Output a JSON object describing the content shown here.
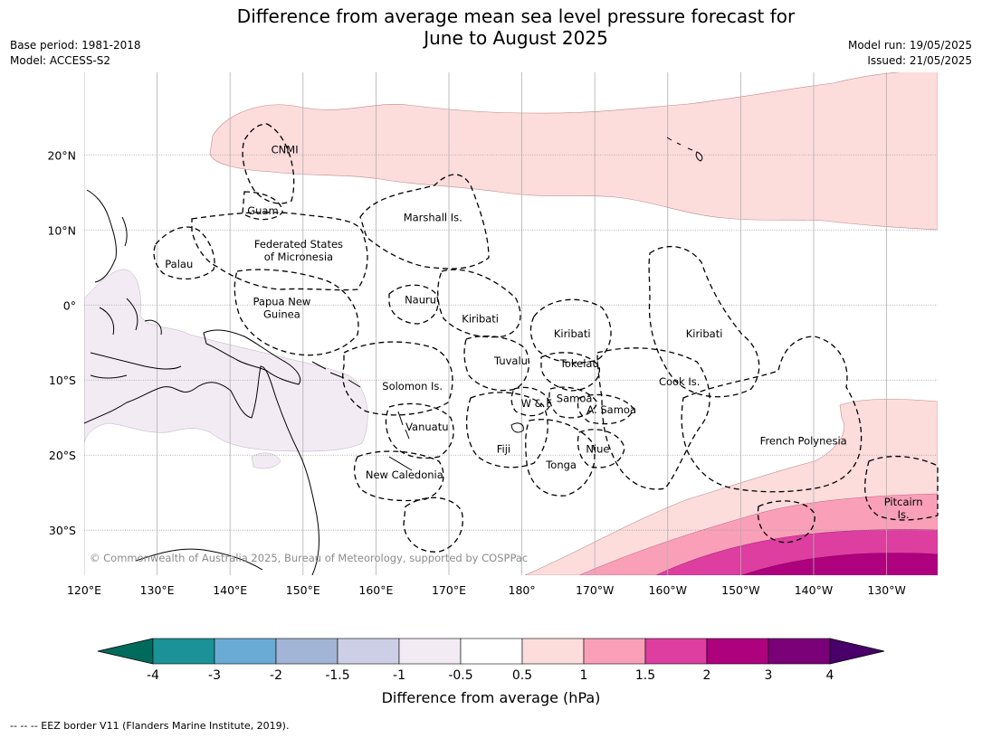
{
  "title_line1": "Difference from average mean sea level pressure forecast for",
  "title_line2": "June to August 2025",
  "meta_left": {
    "base_period": "Base period: 1981-2018",
    "model": "Model: ACCESS-S2"
  },
  "meta_right": {
    "model_run": "Model run: 19/05/2025",
    "issued": "Issued: 21/05/2025"
  },
  "map": {
    "lon_range": [
      120,
      237
    ],
    "lat_range": [
      -36,
      31
    ],
    "lon_ticks": [
      {
        "v": 120,
        "label": "120°E"
      },
      {
        "v": 130,
        "label": "130°E"
      },
      {
        "v": 140,
        "label": "140°E"
      },
      {
        "v": 150,
        "label": "150°E"
      },
      {
        "v": 160,
        "label": "160°E"
      },
      {
        "v": 170,
        "label": "170°E"
      },
      {
        "v": 180,
        "label": "180°"
      },
      {
        "v": 190,
        "label": "170°W"
      },
      {
        "v": 200,
        "label": "160°W"
      },
      {
        "v": 210,
        "label": "150°W"
      },
      {
        "v": 220,
        "label": "140°W"
      },
      {
        "v": 230,
        "label": "130°W"
      }
    ],
    "lat_ticks": [
      {
        "v": 20,
        "label": "20°N"
      },
      {
        "v": 10,
        "label": "10°N"
      },
      {
        "v": 0,
        "label": "0°"
      },
      {
        "v": -10,
        "label": "10°S"
      },
      {
        "v": -20,
        "label": "20°S"
      },
      {
        "v": -30,
        "label": "30°S"
      }
    ],
    "copyright": "© Commonwealth of Australia 2025, Bureau of Meteorology, supported by COSPPac",
    "places": [
      {
        "name": "CNMI",
        "lines": [
          "CNMI"
        ],
        "lon": 147.5,
        "lat": 20.2
      },
      {
        "name": "Guam",
        "lines": [
          "Guam"
        ],
        "lon": 144.5,
        "lat": 12.1
      },
      {
        "name": "Marshall Is.",
        "lines": [
          "Marshall Is."
        ],
        "lon": 167.8,
        "lat": 11.2
      },
      {
        "name": "Federated States of Micronesia",
        "lines": [
          "Federated States",
          "of Micronesia"
        ],
        "lon": 149.4,
        "lat": 7.6
      },
      {
        "name": "Palau",
        "lines": [
          "Palau"
        ],
        "lon": 133.0,
        "lat": 5.0
      },
      {
        "name": "Nauru",
        "lines": [
          "Nauru"
        ],
        "lon": 166.1,
        "lat": 0.2
      },
      {
        "name": "Papua New Guinea",
        "lines": [
          "Papua New",
          "Guinea"
        ],
        "lon": 147.1,
        "lat": 0.0
      },
      {
        "name": "Kiribati west",
        "lines": [
          "Kiribati"
        ],
        "lon": 174.3,
        "lat": -2.3
      },
      {
        "name": "Kiribati central",
        "lines": [
          "Kiribati"
        ],
        "lon": 186.9,
        "lat": -4.3
      },
      {
        "name": "Kiribati east",
        "lines": [
          "Kiribati"
        ],
        "lon": 205.0,
        "lat": -4.3
      },
      {
        "name": "Tuvalu",
        "lines": [
          "Tuvalu"
        ],
        "lon": 178.5,
        "lat": -7.9
      },
      {
        "name": "Tokelau",
        "lines": [
          "Tokelau"
        ],
        "lon": 187.9,
        "lat": -8.3
      },
      {
        "name": "Solomon Is.",
        "lines": [
          "Solomon Is."
        ],
        "lon": 165.0,
        "lat": -11.3
      },
      {
        "name": "Cook Is.",
        "lines": [
          "Cook Is."
        ],
        "lon": 201.6,
        "lat": -10.7
      },
      {
        "name": "W & F",
        "lines": [
          "W & F"
        ],
        "lon": 182.0,
        "lat": -13.6
      },
      {
        "name": "Samoa",
        "lines": [
          "Samoa"
        ],
        "lon": 187.2,
        "lat": -12.9
      },
      {
        "name": "A. Samoa",
        "lines": [
          "A. Samoa"
        ],
        "lon": 192.3,
        "lat": -14.4
      },
      {
        "name": "Vanuatu",
        "lines": [
          "Vanuatu"
        ],
        "lon": 167.0,
        "lat": -16.7
      },
      {
        "name": "French Polynesia",
        "lines": [
          "French Polynesia"
        ],
        "lon": 218.6,
        "lat": -18.6
      },
      {
        "name": "Fiji",
        "lines": [
          "Fiji"
        ],
        "lon": 177.5,
        "lat": -19.7
      },
      {
        "name": "Niue",
        "lines": [
          "Niue"
        ],
        "lon": 190.4,
        "lat": -19.7
      },
      {
        "name": "Tonga",
        "lines": [
          "Tonga"
        ],
        "lon": 185.4,
        "lat": -21.8
      },
      {
        "name": "New Caledonia",
        "lines": [
          "New Caledonia"
        ],
        "lon": 163.9,
        "lat": -23.1
      },
      {
        "name": "Pitcairn Is.",
        "lines": [
          "Pitcairn",
          "Is."
        ],
        "lon": 232.3,
        "lat": -26.7
      }
    ]
  },
  "colorbar": {
    "label": "Difference from average (hPa)",
    "ticks": [
      "-4",
      "-3",
      "-2",
      "-1.5",
      "-1",
      "-0.5",
      "0.5",
      "1",
      "1.5",
      "2",
      "3",
      "4"
    ],
    "colors": [
      "#1a9297",
      "#69abd4",
      "#a3b5d6",
      "#cdcfe6",
      "#f3ebf4",
      "#ffffff",
      "#fddcdc",
      "#f9a0b8",
      "#dd3ea0",
      "#ae017e",
      "#7a0177"
    ],
    "under_color": "#006b5c",
    "over_color": "#49006a"
  },
  "footnote": "--  --  -- EEZ border V11 (Flanders Marine Institute, 2019)."
}
